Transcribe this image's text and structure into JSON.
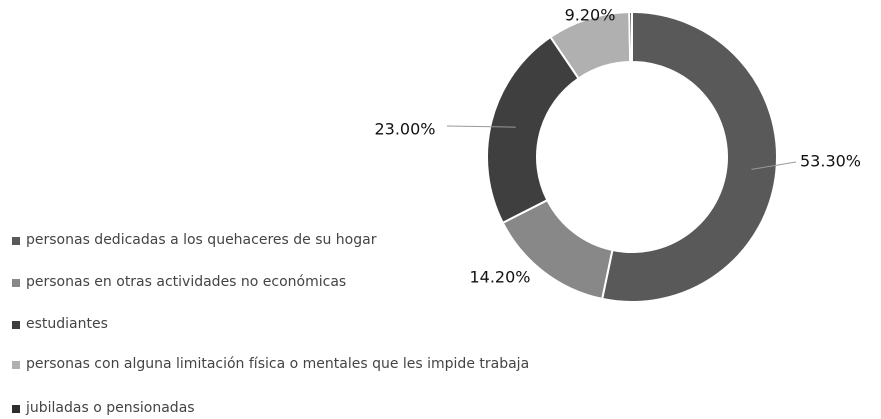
{
  "chart_data": {
    "type": "donut",
    "categories": [
      "personas dedicadas a los quehaceres de su hogar",
      "personas en otras actividades no económicas",
      "estudiantes",
      "personas con alguna limitación física o mentales que les impide trabaja",
      "jubiladas o pensionadas"
    ],
    "values": [
      53.3,
      14.2,
      23.0,
      9.2,
      0.3
    ],
    "value_labels": [
      "53.30%",
      "14.20%",
      "23.00%",
      "9.20%",
      null
    ],
    "colors": [
      "#595959",
      "#888888",
      "#3f3f3f",
      "#b0b0b0",
      "#2e2e2e"
    ],
    "legend": "left"
  }
}
